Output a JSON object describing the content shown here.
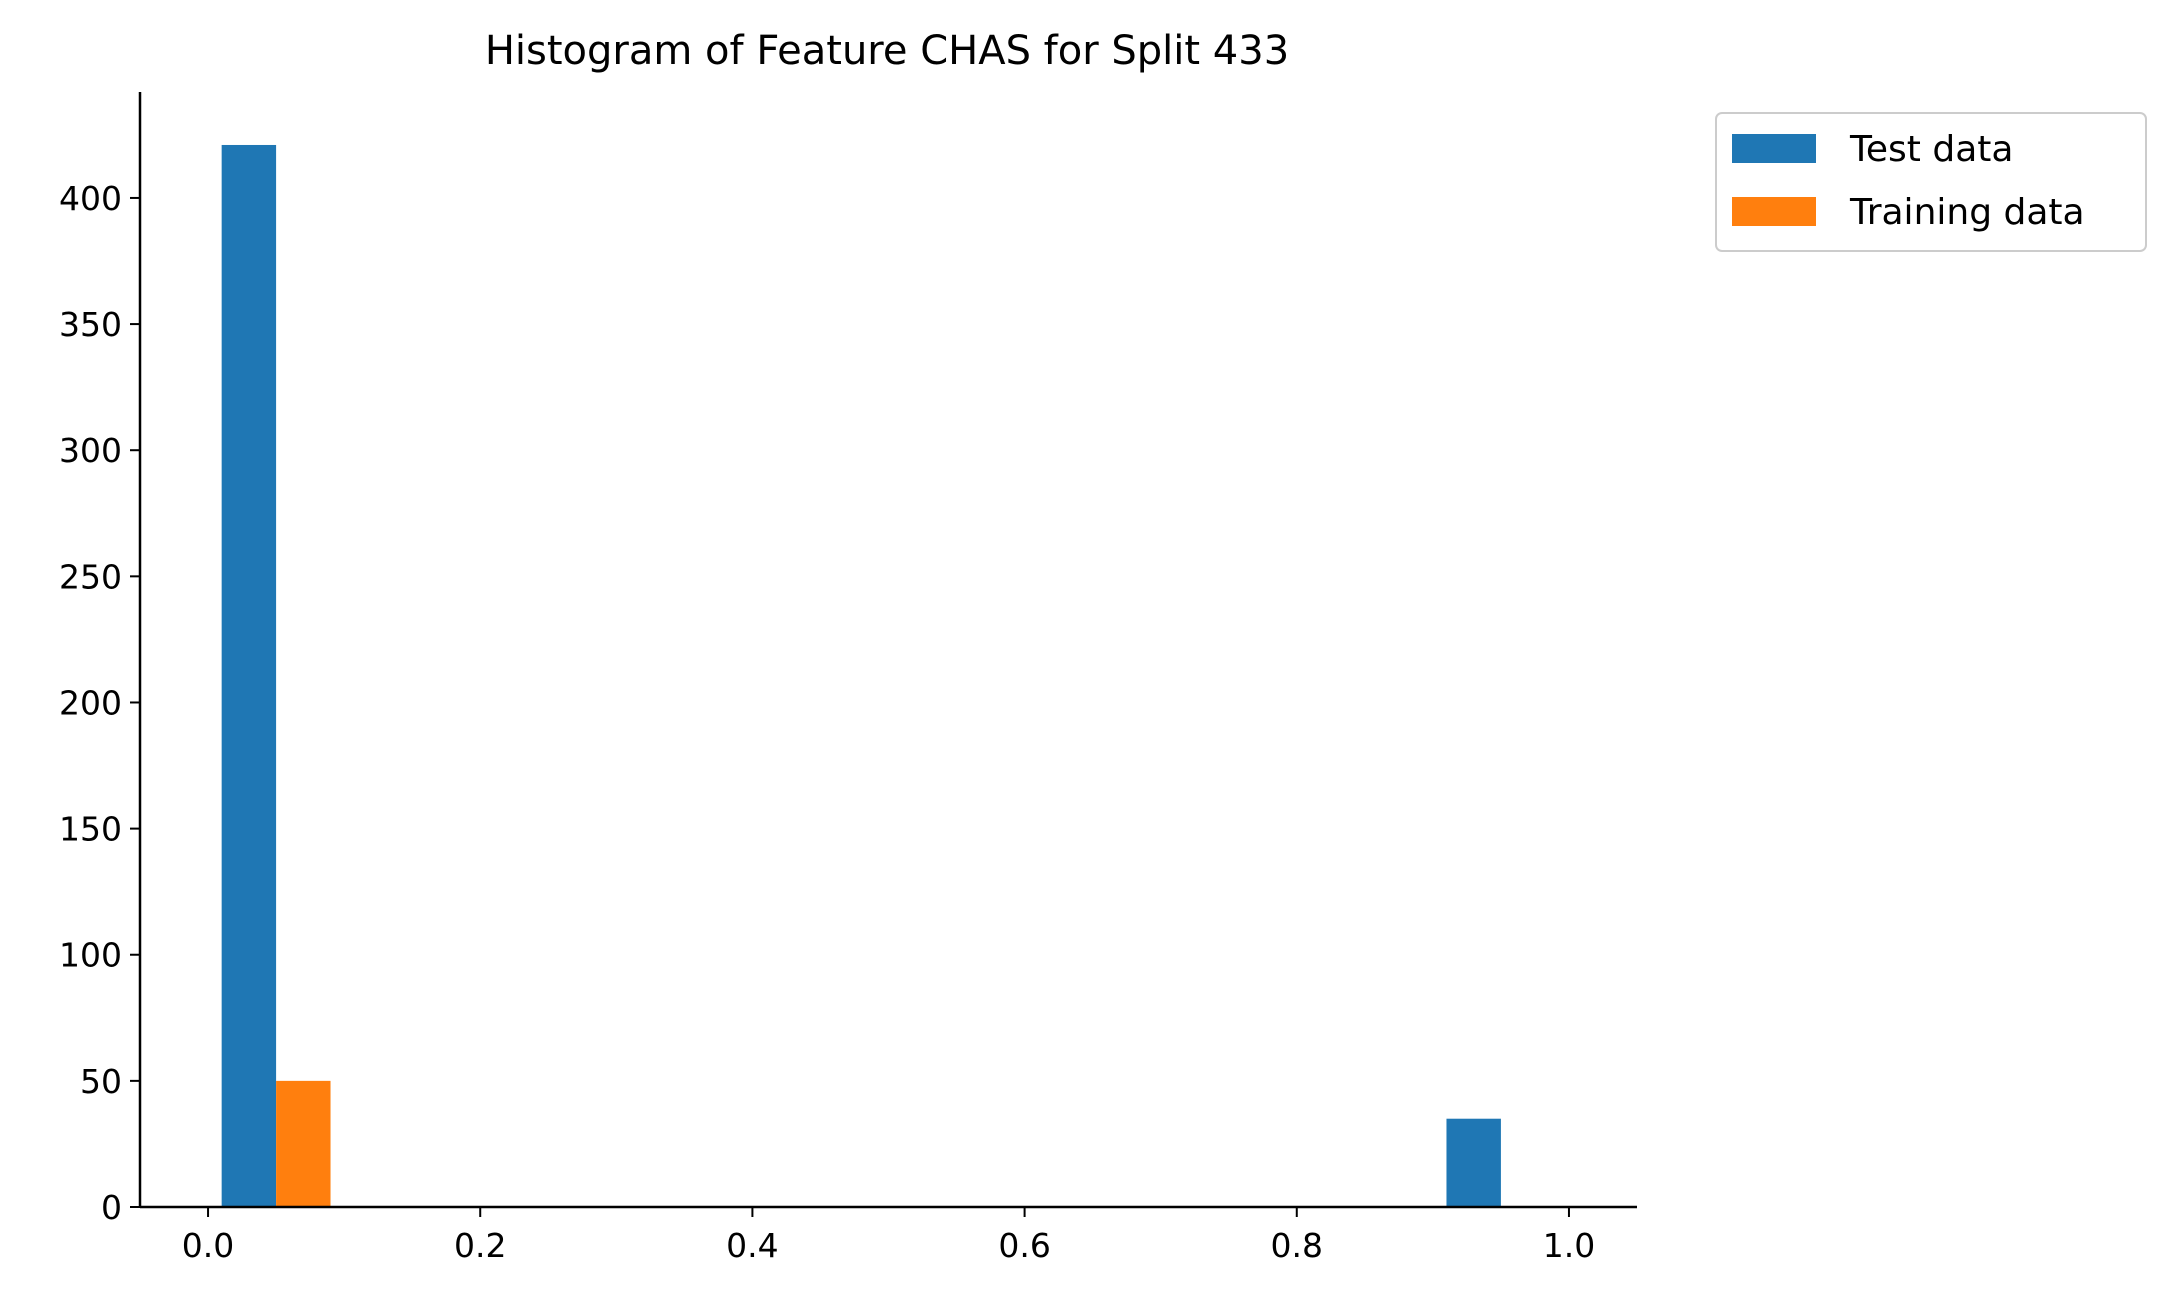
{
  "chart_data": {
    "type": "bar",
    "title": "Histogram of Feature CHAS for Split 433",
    "xlabel": "",
    "ylabel": "",
    "xlim": [
      -0.05,
      1.05
    ],
    "ylim": [
      0,
      442
    ],
    "x_ticks": [
      0.0,
      0.2,
      0.4,
      0.6,
      0.8,
      1.0
    ],
    "x_tick_labels": [
      "0.0",
      "0.2",
      "0.4",
      "0.6",
      "0.8",
      "1.0"
    ],
    "y_ticks": [
      0,
      50,
      100,
      150,
      200,
      250,
      300,
      350,
      400
    ],
    "y_tick_labels": [
      "0",
      "50",
      "100",
      "150",
      "200",
      "250",
      "300",
      "350",
      "400"
    ],
    "bins": [
      [
        0.0,
        0.1
      ],
      [
        0.1,
        0.2
      ],
      [
        0.2,
        0.3
      ],
      [
        0.3,
        0.4
      ],
      [
        0.4,
        0.5
      ],
      [
        0.5,
        0.6
      ],
      [
        0.6,
        0.7
      ],
      [
        0.7,
        0.8
      ],
      [
        0.8,
        0.9
      ],
      [
        0.9,
        1.0
      ]
    ],
    "series": [
      {
        "name": "Test data",
        "color": "#1f77b4",
        "values": [
          421,
          0,
          0,
          0,
          0,
          0,
          0,
          0,
          0,
          35
        ]
      },
      {
        "name": "Training data",
        "color": "#ff7f0e",
        "values": [
          50,
          0,
          0,
          0,
          0,
          0,
          0,
          0,
          0,
          0
        ]
      }
    ],
    "grid": false,
    "legend_position": "outside top-right"
  }
}
